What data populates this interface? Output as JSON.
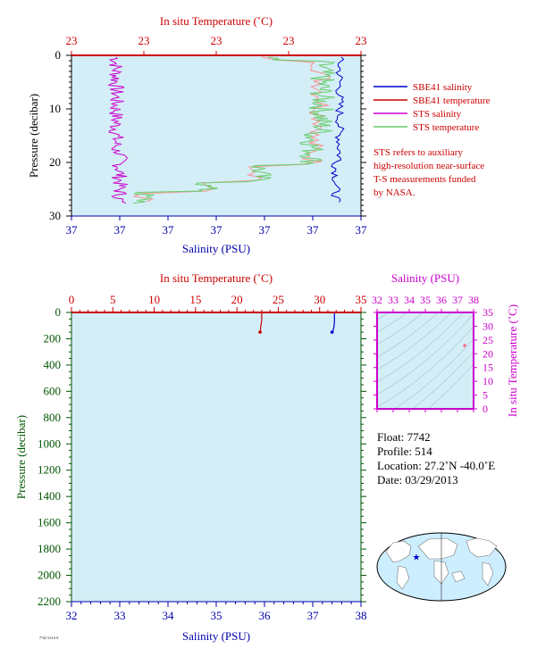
{
  "chart_data": [
    {
      "type": "line",
      "top_axis_label": "In situ Temperature (˚C)",
      "top_ticks": [
        "23",
        "23",
        "23",
        "23",
        "23"
      ],
      "left_axis_label": "Pressure (decibar)",
      "y_ticks": [
        "0",
        "10",
        "20",
        "30"
      ],
      "ylim": [
        0,
        30
      ],
      "bottom_axis_label": "Salinity (PSU)",
      "bottom_ticks": [
        "37",
        "37",
        "37",
        "37",
        "37",
        "37",
        "37"
      ],
      "grid": false,
      "legend": [
        {
          "name": "SBE41 salinity",
          "color": "#0000cc"
        },
        {
          "name": "SBE41 temperature",
          "color": "#cc0000"
        },
        {
          "name": "STS salinity",
          "color": "#cc00cc"
        },
        {
          "name": "STS temperature",
          "color": "#66cc66"
        }
      ],
      "note": [
        "STS refers to auxiliary",
        "high-resolution near-surface",
        "T-S measurements funded",
        "by NASA."
      ],
      "colors": {
        "panel": "#d4eef8",
        "temperature_axis": "#cc0000",
        "salinity_axis": "#0000aa",
        "pressure_axis": "#005500"
      }
    },
    {
      "type": "line",
      "top_axis_label": "In situ Temperature (˚C)",
      "top_ticks": [
        "0",
        "5",
        "10",
        "15",
        "20",
        "25",
        "30",
        "35"
      ],
      "xlim_temperature": [
        0,
        35
      ],
      "left_axis_label": "Pressure (decibar)",
      "y_ticks": [
        "0",
        "200",
        "400",
        "600",
        "800",
        "1000",
        "1200",
        "1400",
        "1600",
        "1800",
        "2000",
        "2200"
      ],
      "ylim": [
        0,
        2200
      ],
      "bottom_axis_label": "Salinity (PSU)",
      "bottom_ticks": [
        "32",
        "33",
        "34",
        "35",
        "36",
        "37",
        "38"
      ],
      "xlim_salinity": [
        32,
        38
      ],
      "series": [
        {
          "variable": "temperature",
          "color": "#cc0000",
          "points": [
            [
              23.0,
              0
            ],
            [
              23.0,
              20
            ],
            [
              23.0,
              60
            ],
            [
              22.9,
              100
            ],
            [
              22.85,
              130
            ],
            [
              22.8,
              150
            ]
          ]
        },
        {
          "variable": "salinity",
          "color": "#0000cc",
          "points": [
            [
              37.45,
              0
            ],
            [
              37.45,
              30
            ],
            [
              37.45,
              70
            ],
            [
              37.44,
              110
            ],
            [
              37.42,
              140
            ],
            [
              37.4,
              150
            ]
          ]
        }
      ]
    },
    {
      "type": "scatter",
      "title": "Salinity (PSU)",
      "x_ticks": [
        "32",
        "33",
        "34",
        "35",
        "36",
        "37",
        "38"
      ],
      "xlim": [
        32,
        38
      ],
      "ylabel": "In situ Temperature (˚C)",
      "y_ticks": [
        "0",
        "5",
        "10",
        "15",
        "20",
        "25",
        "30",
        "35"
      ],
      "ylim": [
        0,
        35
      ],
      "points": [
        [
          37.45,
          23.0
        ],
        [
          37.44,
          22.9
        ]
      ]
    }
  ],
  "float_info": {
    "float": "Float:  7742",
    "profile": "Profile:  514",
    "location": "Location:  27.2˚N  -40.0˚E",
    "date": "Date:  03/29/2013"
  },
  "map": {
    "marker": "★",
    "marker_lon": -40.0,
    "marker_lat": 27.2
  },
  "footer_code": "7742 514 S 0"
}
